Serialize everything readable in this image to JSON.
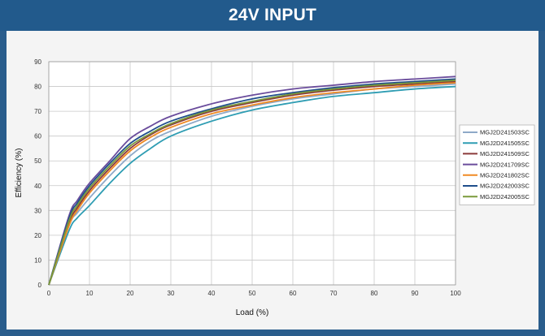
{
  "header": {
    "title": "24V INPUT"
  },
  "chart_data": {
    "type": "line",
    "title": "24V INPUT",
    "xlabel": "Load  (%)",
    "ylabel": "Efficiency (%)",
    "xlim": [
      0,
      100
    ],
    "ylim": [
      0,
      90
    ],
    "xticks": [
      0,
      10,
      20,
      30,
      40,
      50,
      60,
      70,
      80,
      90,
      100
    ],
    "yticks": [
      0,
      10,
      20,
      30,
      40,
      50,
      60,
      70,
      80,
      90
    ],
    "grid": true,
    "legend_position": "right",
    "x": [
      0,
      5,
      7,
      10,
      15,
      20,
      25,
      30,
      40,
      50,
      60,
      70,
      80,
      90,
      100
    ],
    "series": [
      {
        "name": "MGJ2D241503SC",
        "color": "#8ea9c8",
        "values": [
          0,
          24,
          29,
          35,
          44,
          52,
          58,
          62,
          68,
          72,
          75,
          77,
          79,
          80,
          81
        ]
      },
      {
        "name": "MGJ2D241505SC",
        "color": "#2f9db3",
        "values": [
          0,
          22,
          27,
          32,
          41,
          49,
          55,
          60,
          66,
          70.5,
          73.5,
          76,
          77.5,
          79,
          80
        ]
      },
      {
        "name": "MGJ2D241509SC",
        "color": "#8b3a3a",
        "values": [
          0,
          25,
          31,
          38,
          47,
          55,
          60.5,
          64.5,
          70,
          73.5,
          76.5,
          78.5,
          80,
          81,
          82
        ]
      },
      {
        "name": "MGJ2D241709SC",
        "color": "#6a4c9c",
        "values": [
          0,
          28,
          34,
          41,
          50,
          59,
          64,
          68,
          73,
          76.5,
          79,
          80.5,
          82,
          83,
          84
        ]
      },
      {
        "name": "MGJ2D241802SC",
        "color": "#f08a24",
        "values": [
          0,
          24,
          30,
          37,
          46,
          54,
          59.5,
          63.5,
          69,
          72.5,
          75.5,
          77.5,
          79,
          80.5,
          81.5
        ]
      },
      {
        "name": "MGJ2D242003SC",
        "color": "#1f4e8c",
        "values": [
          0,
          27,
          33,
          40,
          49,
          57,
          62,
          66,
          71,
          75,
          77.5,
          79.5,
          81,
          82,
          83
        ]
      },
      {
        "name": "MGJ2D242005SC",
        "color": "#7a9a3a",
        "values": [
          0,
          26,
          32,
          39,
          48,
          56,
          61,
          65,
          70.5,
          74,
          77,
          79,
          80.5,
          81.5,
          82.5
        ]
      }
    ]
  }
}
